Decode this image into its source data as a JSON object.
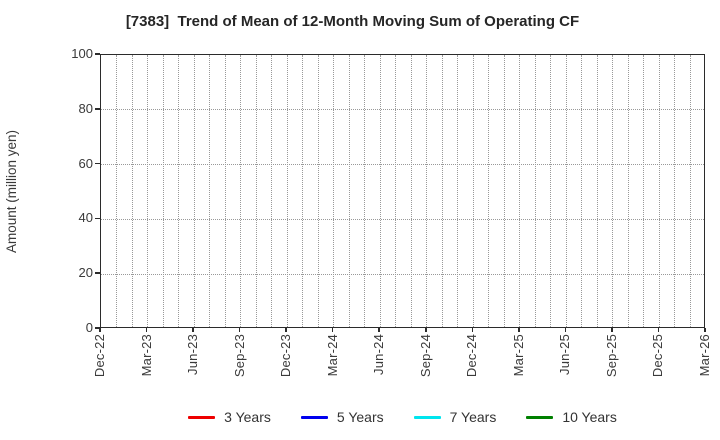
{
  "chart_data": {
    "type": "line",
    "title": "[7383]  Trend of Mean of 12-Month Moving Sum of Operating CF",
    "ylabel": "Amount (million yen)",
    "ylim": [
      0,
      100
    ],
    "yticks": [
      0,
      20,
      40,
      60,
      80,
      100
    ],
    "x_tick_labels": [
      "Dec-22",
      "Mar-23",
      "Jun-23",
      "Sep-23",
      "Dec-23",
      "Mar-24",
      "Jun-24",
      "Sep-24",
      "Dec-24",
      "Mar-25",
      "Jun-25",
      "Sep-25",
      "Dec-25",
      "Mar-26"
    ],
    "x_months_total": 39,
    "x_label_every_months": 3,
    "grid": {
      "style": "dotted",
      "color": "#999999",
      "vertical": "monthly",
      "horizontal": "every 20 units"
    },
    "axis_color": "#2b2b2b",
    "legend_position": "bottom center",
    "series": [
      {
        "name": "3 Years",
        "color": "#ee0000",
        "values": []
      },
      {
        "name": "5 Years",
        "color": "#0000ee",
        "values": []
      },
      {
        "name": "7 Years",
        "color": "#00e5ee",
        "values": []
      },
      {
        "name": "10 Years",
        "color": "#008000",
        "values": []
      }
    ],
    "no_data_drawn": true
  }
}
